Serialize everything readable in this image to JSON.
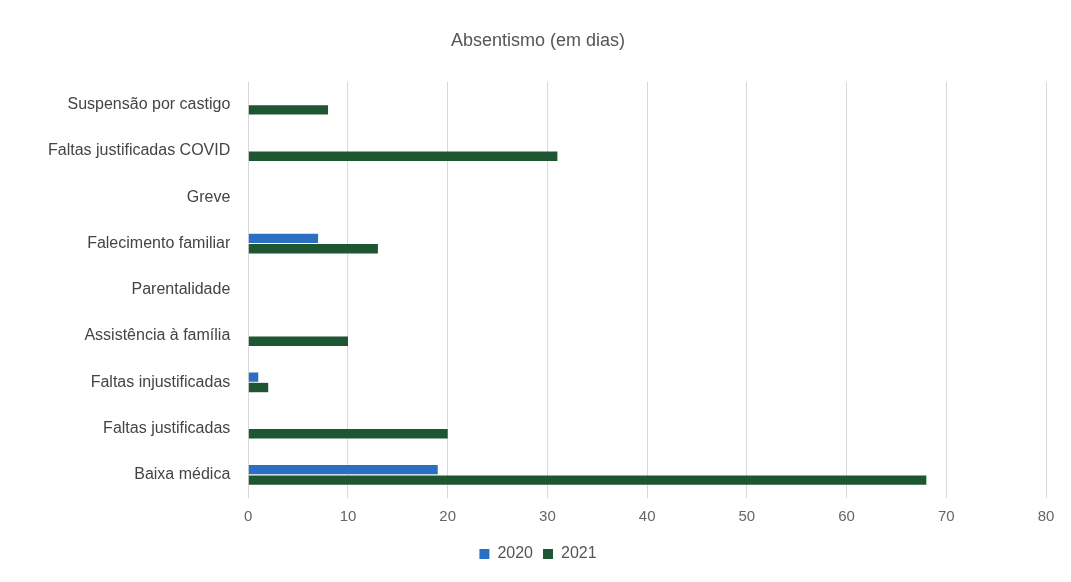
{
  "chart_data": {
    "type": "bar",
    "orientation": "horizontal",
    "title": "Absentismo (em dias)",
    "categories": [
      "Suspensão por castigo",
      "Faltas justificadas COVID",
      "Greve",
      "Falecimento familiar",
      "Parentalidade",
      "Assistência à família",
      "Faltas injustificadas",
      "Faltas justificadas",
      "Baixa médica"
    ],
    "series": [
      {
        "name": "2020",
        "color": "#2a6fc4",
        "values": [
          0,
          0,
          0,
          7,
          0,
          0,
          1,
          0,
          19
        ]
      },
      {
        "name": "2021",
        "color": "#1e5631",
        "values": [
          8,
          31,
          0,
          13,
          0,
          10,
          2,
          20,
          68
        ]
      }
    ],
    "xlim": [
      0,
      80
    ],
    "xticks": [
      0,
      10,
      20,
      30,
      40,
      50,
      60,
      70,
      80
    ],
    "grid": "x",
    "legend": "bottom"
  }
}
